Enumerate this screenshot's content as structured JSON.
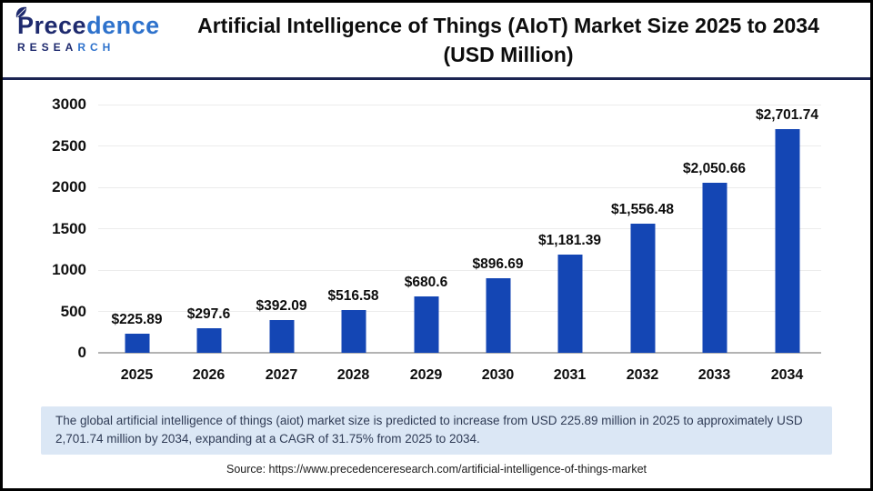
{
  "header": {
    "logo": {
      "name_prefix": "Prece",
      "name_suffix": "dence",
      "subtitle_prefix": "RESEA",
      "subtitle_suffix": "RCH"
    },
    "title_line1": "Artificial Intelligence of Things (AIoT) Market Size 2025 to 2034",
    "title_line2": "(USD Million)"
  },
  "chart_data": {
    "type": "bar",
    "title": "Artificial Intelligence of Things (AIoT) Market Size 2025 to 2034 (USD Million)",
    "categories": [
      "2025",
      "2026",
      "2027",
      "2028",
      "2029",
      "2030",
      "2031",
      "2032",
      "2033",
      "2034"
    ],
    "values": [
      225.89,
      297.6,
      392.09,
      516.58,
      680.6,
      896.69,
      1181.39,
      1556.48,
      2050.66,
      2701.74
    ],
    "value_labels": [
      "$225.89",
      "$297.6",
      "$392.09",
      "$516.58",
      "$680.6",
      "$896.69",
      "$1,181.39",
      "$1,556.48",
      "$2,050.66",
      "$2,701.74"
    ],
    "xlabel": "",
    "ylabel": "",
    "ylim": [
      0,
      3000
    ],
    "yticks": [
      0,
      500,
      1000,
      1500,
      2000,
      2500,
      3000
    ],
    "grid": true,
    "legend": "none",
    "bar_color": "#1446b4"
  },
  "footer": {
    "summary": "The global artificial intelligence of things (aiot) market size is predicted to increase from USD 225.89 million in 2025 to approximately USD 2,701.74 million by 2034, expanding at a CAGR of 31.75% from 2025 to 2034.",
    "source": "Source: https://www.precedenceresearch.com/artificial-intelligence-of-things-market"
  },
  "colors": {
    "bar": "#1446b4",
    "header_divider": "#1b2452",
    "summary_bg": "#dbe7f5",
    "summary_text": "#2f3b55",
    "grid": "#ececec",
    "baseline": "#b3b3b3",
    "logo_navy": "#1e2a6e",
    "logo_blue": "#2e72cc"
  }
}
